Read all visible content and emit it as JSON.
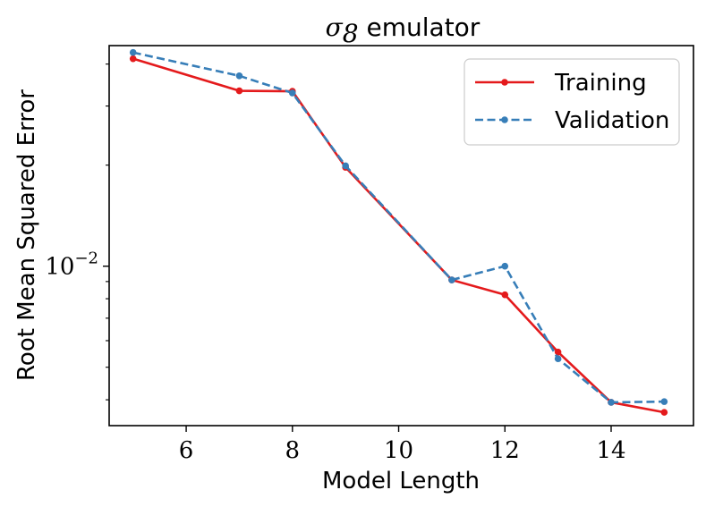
{
  "chart_data": {
    "type": "line",
    "title_symbol": "σ",
    "title_subscript": "8",
    "title_rest": " emulator",
    "xlabel": "Model Length",
    "ylabel": "Root Mean Squared Error",
    "xlim": [
      4.55,
      15.55
    ],
    "ylim": [
      0.00335,
      0.0454
    ],
    "yscale": "log",
    "x_ticks": [
      6,
      8,
      10,
      12,
      14
    ],
    "y_tick_major_base": "10",
    "y_tick_major_exp": "−2",
    "y_tick_major_value": 0.01,
    "y_minor_ticks": [
      0.004,
      0.005,
      0.006,
      0.007,
      0.008,
      0.009,
      0.02,
      0.03,
      0.04
    ],
    "grid": false,
    "legend_position": "top-right",
    "series": [
      {
        "name": "Training",
        "color": "#e41a1c",
        "style": "solid",
        "x": [
          5,
          7,
          8,
          9,
          11,
          12,
          13,
          14,
          15
        ],
        "y": [
          0.0415,
          0.0333,
          0.0332,
          0.0197,
          0.0091,
          0.00822,
          0.00555,
          0.00393,
          0.00367
        ]
      },
      {
        "name": "Validation",
        "color": "#377eb8",
        "style": "dashed",
        "x": [
          5,
          7,
          8,
          9,
          11,
          12,
          13,
          14,
          15
        ],
        "y": [
          0.0433,
          0.0369,
          0.0328,
          0.0199,
          0.0091,
          0.01,
          0.0053,
          0.00393,
          0.00395
        ]
      }
    ]
  }
}
